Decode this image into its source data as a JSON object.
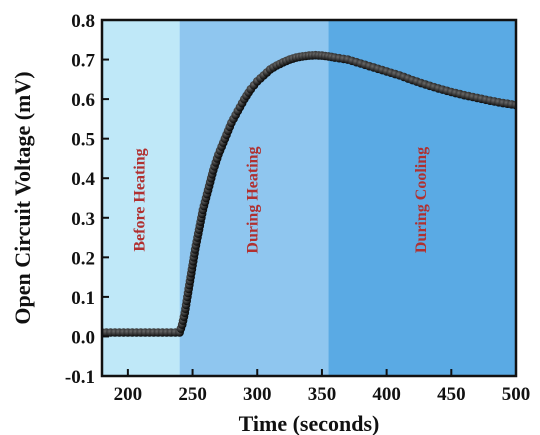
{
  "chart_data": {
    "type": "scatter",
    "xlabel": "Time (seconds)",
    "ylabel": "Open Circuit Voltage (mV)",
    "xlim": [
      180,
      500
    ],
    "ylim": [
      -0.1,
      0.8
    ],
    "xticks": [
      200,
      250,
      300,
      350,
      400,
      450,
      500
    ],
    "yticks": [
      -0.1,
      0.0,
      0.1,
      0.2,
      0.3,
      0.4,
      0.5,
      0.6,
      0.7,
      0.8
    ],
    "grid": false,
    "legend": null,
    "marker_color": "#111111",
    "regions": [
      {
        "label": "Before Heating",
        "x_start": 180,
        "x_end": 240,
        "color": "#bfe8f8",
        "label_color": "#b03030"
      },
      {
        "label": "During Heating",
        "x_start": 240,
        "x_end": 355,
        "color": "#8fc6ef",
        "label_color": "#b03030"
      },
      {
        "label": "During Cooling",
        "x_start": 355,
        "x_end": 500,
        "color": "#5aaae4",
        "label_color": "#b03030"
      }
    ],
    "series": [
      {
        "x": [
          180,
          240,
          242,
          244,
          246,
          248,
          250,
          252,
          255,
          258,
          262,
          266,
          270,
          275,
          280,
          285,
          290,
          295,
          300,
          305,
          310,
          315,
          320,
          325,
          330,
          335,
          340,
          345,
          350,
          355,
          360,
          370,
          380,
          390,
          400,
          410,
          420,
          430,
          440,
          450,
          460,
          470,
          480,
          490,
          500
        ],
        "y": [
          0.01,
          0.01,
          0.03,
          0.06,
          0.1,
          0.14,
          0.18,
          0.22,
          0.27,
          0.32,
          0.37,
          0.42,
          0.46,
          0.5,
          0.54,
          0.57,
          0.6,
          0.625,
          0.645,
          0.66,
          0.675,
          0.685,
          0.693,
          0.7,
          0.705,
          0.708,
          0.71,
          0.711,
          0.71,
          0.708,
          0.705,
          0.7,
          0.69,
          0.68,
          0.67,
          0.66,
          0.648,
          0.637,
          0.627,
          0.618,
          0.61,
          0.603,
          0.596,
          0.59,
          0.585
        ]
      }
    ]
  }
}
